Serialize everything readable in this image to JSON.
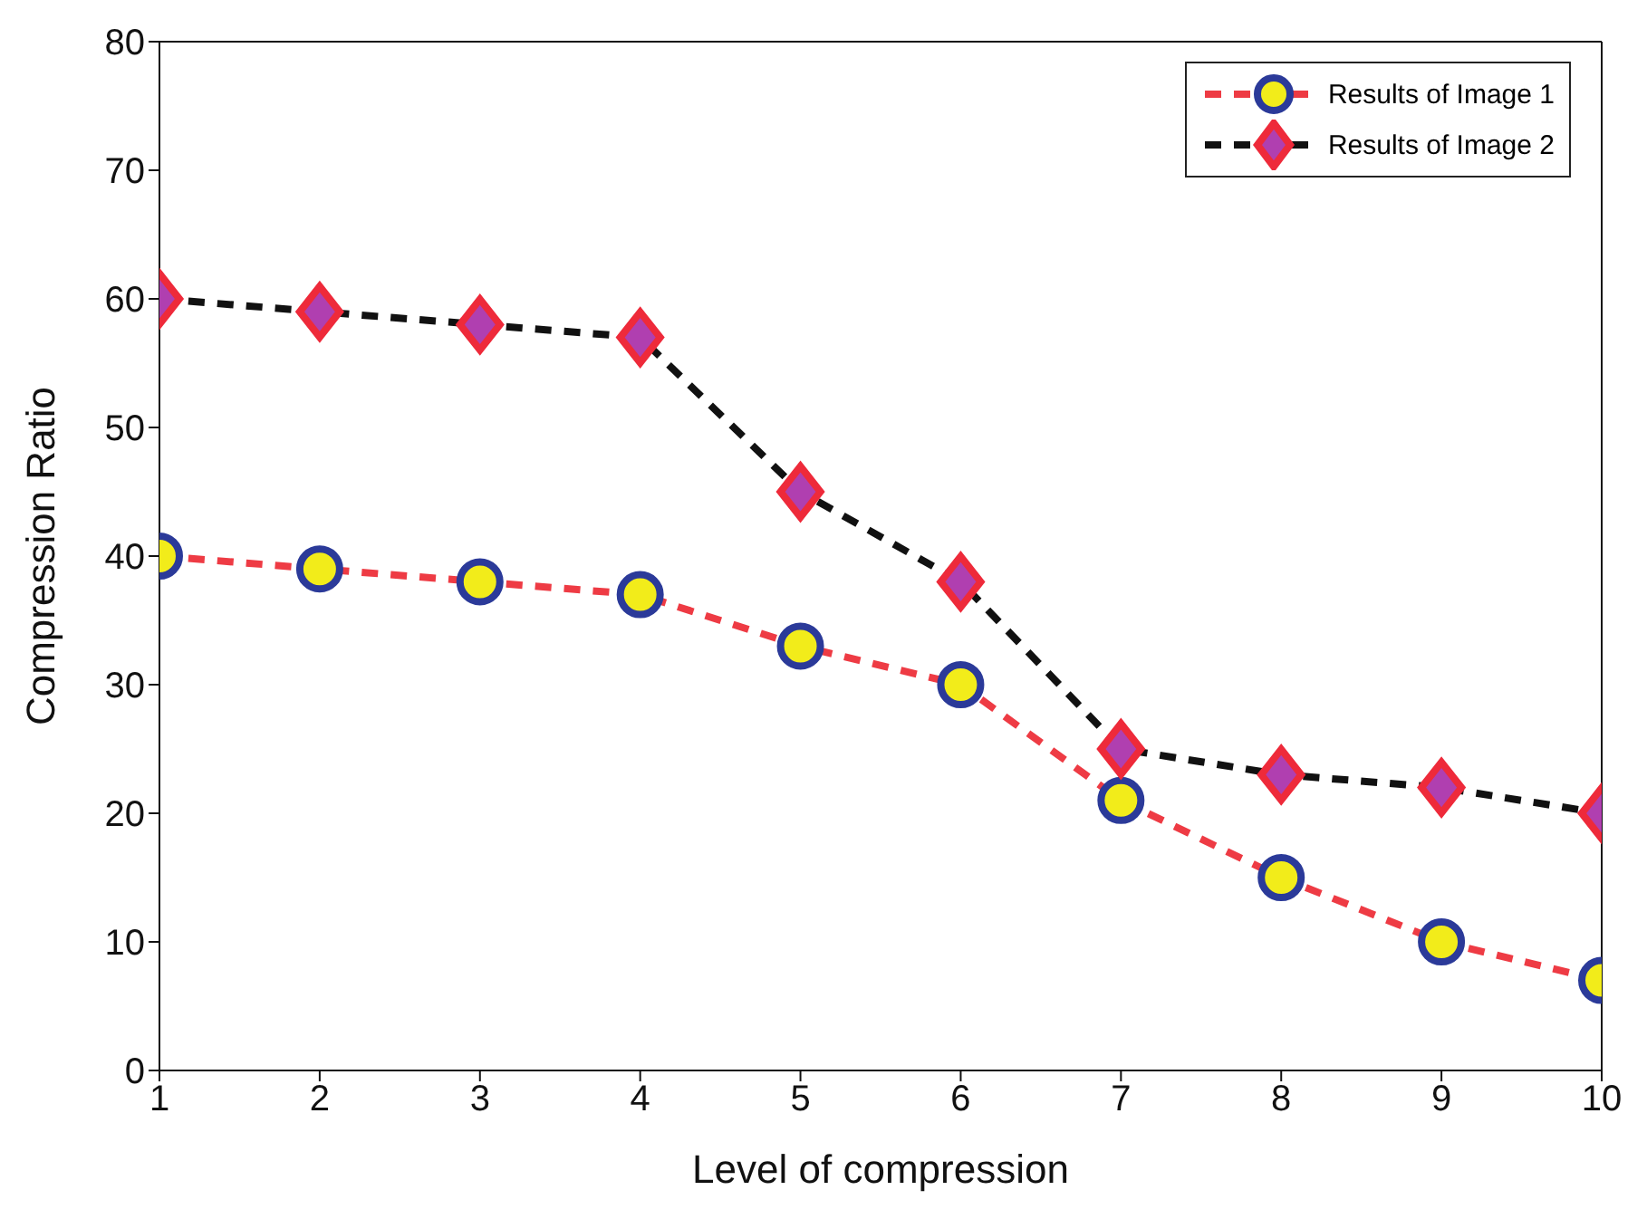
{
  "chart_data": {
    "type": "line",
    "xlabel": "Level of compression",
    "ylabel": "Compression Ratio",
    "x": [
      1,
      2,
      3,
      4,
      5,
      6,
      7,
      8,
      9,
      10
    ],
    "series": [
      {
        "name": "Results of Image 1",
        "color": "#ee3b44",
        "marker": "circle",
        "values": [
          40,
          39,
          38,
          37,
          33,
          30,
          21,
          15,
          10,
          7
        ]
      },
      {
        "name": "Results of Image 2",
        "color": "#111111",
        "marker": "diamond",
        "values": [
          60,
          59,
          58,
          57,
          45,
          38,
          25,
          23,
          22,
          20
        ]
      }
    ],
    "xlim": [
      1,
      10
    ],
    "xticks": [
      1,
      2,
      3,
      4,
      5,
      6,
      7,
      8,
      9,
      10
    ],
    "ylim": [
      0,
      80
    ],
    "yticks": [
      0,
      10,
      20,
      30,
      40,
      50,
      60,
      70,
      80
    ],
    "grid": false,
    "legend": "top right",
    "line_style": "dashed"
  }
}
